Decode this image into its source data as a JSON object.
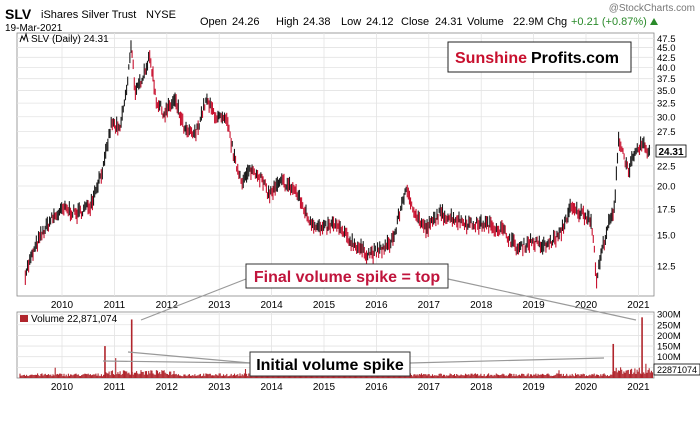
{
  "header": {
    "ticker": "SLV",
    "name": "iShares Silver Trust",
    "exchange": "NYSE",
    "date": "19-Mar-2021",
    "open_label": "Open",
    "open": "24.26",
    "high_label": "High",
    "high": "24.38",
    "low_label": "Low",
    "low": "24.12",
    "close_label": "Close",
    "close": "24.31",
    "volume_label": "Volume",
    "volume": "22.9M",
    "chg_label": "Chg",
    "chg": "+0.21 (+0.87%)",
    "watermark": "@StockCharts.com"
  },
  "price_panel": {
    "legend": "SLV (Daily) 24.31",
    "last_value": "24.31",
    "brand_red": "Sunshine",
    "brand_black": "Profits.com"
  },
  "volume_panel": {
    "legend": "Volume 22,871,074",
    "last_value": "22871074"
  },
  "annotations": {
    "top": "Final volume spike = top",
    "initial": "Initial volume spike"
  },
  "colors": {
    "up": "#1a1a1a",
    "down": "#c8102e",
    "volume_bar": "#b0252c",
    "brand_red": "#c8102e",
    "annotation_red": "#c0143c",
    "grid": "#e3e3e3",
    "chg_green": "#2a8a2a"
  },
  "chart_data": [
    {
      "type": "line",
      "title": "SLV (Daily) 24.31",
      "scale": "log",
      "grid": true,
      "x_tick_labels": [
        "2010",
        "2011",
        "2012",
        "2013",
        "2014",
        "2015",
        "2016",
        "2017",
        "2018",
        "2019",
        "2020",
        "2021"
      ],
      "y_tick_labels": [
        "12.5",
        "15.0",
        "17.5",
        "20.0",
        "22.5",
        "25.0",
        "27.5",
        "30.0",
        "32.5",
        "35.0",
        "37.5",
        "40.0",
        "42.5",
        "45.0",
        "47.5"
      ],
      "ylim": [
        10.5,
        49
      ],
      "x": [
        2009.3,
        2009.55,
        2009.8,
        2010.05,
        2010.3,
        2010.55,
        2010.8,
        2010.95,
        2011.1,
        2011.25,
        2011.32,
        2011.4,
        2011.55,
        2011.68,
        2011.8,
        2011.95,
        2012.15,
        2012.35,
        2012.55,
        2012.75,
        2012.95,
        2013.15,
        2013.3,
        2013.45,
        2013.6,
        2013.75,
        2013.95,
        2014.2,
        2014.45,
        2014.7,
        2014.95,
        2015.2,
        2015.5,
        2015.8,
        2015.95,
        2016.2,
        2016.35,
        2016.55,
        2016.8,
        2016.95,
        2017.2,
        2017.5,
        2017.8,
        2018.1,
        2018.4,
        2018.7,
        2018.95,
        2019.2,
        2019.5,
        2019.7,
        2019.95,
        2020.1,
        2020.2,
        2020.27,
        2020.4,
        2020.55,
        2020.62,
        2020.7,
        2020.8,
        2020.95,
        2021.05,
        2021.15,
        2021.21
      ],
      "y": [
        12.0,
        14.5,
        16.5,
        17.5,
        17.0,
        18.0,
        22.5,
        29.0,
        27.5,
        36.0,
        46.5,
        34.0,
        38.5,
        42.5,
        33.0,
        30.5,
        33.0,
        27.5,
        27.0,
        33.0,
        30.0,
        29.0,
        23.0,
        20.5,
        22.0,
        21.5,
        19.0,
        20.5,
        19.5,
        16.5,
        15.5,
        16.0,
        14.5,
        13.5,
        13.5,
        14.0,
        15.0,
        19.5,
        16.5,
        15.5,
        17.0,
        16.5,
        16.0,
        16.0,
        15.5,
        13.8,
        14.5,
        14.0,
        15.0,
        17.5,
        17.0,
        16.5,
        11.5,
        13.0,
        15.5,
        17.5,
        26.5,
        24.5,
        22.0,
        24.0,
        25.5,
        25.0,
        24.31
      ]
    },
    {
      "type": "bar",
      "title": "Volume 22,871,074",
      "y_tick_labels": [
        "50M",
        "100M",
        "150M",
        "200M",
        "250M",
        "300M"
      ],
      "ylim": [
        0,
        310000000
      ],
      "spikes": [
        {
          "x": 2010.82,
          "value": 150000000
        },
        {
          "x": 2011.33,
          "value": 275000000
        },
        {
          "x": 2020.52,
          "value": 160000000
        },
        {
          "x": 2021.07,
          "value": 285000000
        }
      ]
    }
  ]
}
